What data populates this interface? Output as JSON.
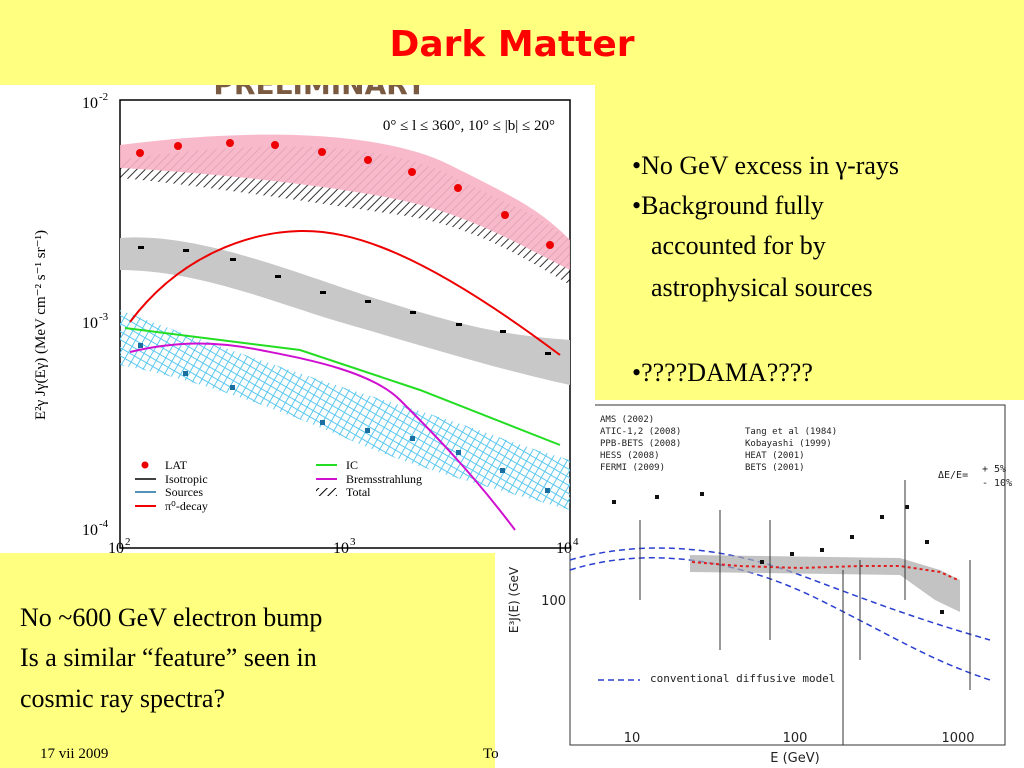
{
  "title": "Dark Matter",
  "bullets": [
    "•No GeV excess in γ-rays",
    "•Background fully",
    "accounted for by",
    "astrophysical sources",
    "•????DAMA????"
  ],
  "notes": [
    "No ~600 GeV electron bump",
    "Is a similar “feature” seen in",
    "cosmic ray spectra?"
  ],
  "footer": {
    "date": "17 vii 2009",
    "center": "To"
  },
  "left_figure": {
    "banner": "PRELIMINARY",
    "region": "0° ≤ l ≤ 360°, 10° ≤ |b| ≤ 20°",
    "y_label": "E²γ Jγ(Eγ) (MeV cm⁻² s⁻¹ sr⁻¹)",
    "y_ticks": [
      {
        "base": "10",
        "exp": "-2"
      },
      {
        "base": "10",
        "exp": "-3"
      },
      {
        "base": "10",
        "exp": "-4"
      }
    ],
    "x_ticks": [
      {
        "base": "10",
        "exp": "2"
      },
      {
        "base": "10",
        "exp": "3"
      },
      {
        "base": "10",
        "exp": "4"
      }
    ],
    "legend": [
      "LAT",
      "Isotropic",
      "Sources",
      "π⁰-decay",
      "IC",
      "Bremsstrahlung",
      "Total"
    ]
  },
  "right_figure": {
    "legend_left": [
      "AMS (2002)",
      "ATIC-1,2 (2008)",
      "PPB-BETS (2008)",
      "HESS (2008)",
      "FERMI (2009)"
    ],
    "legend_right": [
      "Tang et al (1984)",
      "Kobayashi (1999)",
      "HEAT (2001)",
      "BETS (2001)"
    ],
    "resolution": [
      "ΔE/E=",
      "+ 5%",
      "- 10%"
    ],
    "model": "conventional diffusive model",
    "y_label": "E³J(E) (GeV",
    "y_tick": "100",
    "x_ticks": [
      "10",
      "100",
      "1000"
    ],
    "x_label": "E (GeV)"
  }
}
